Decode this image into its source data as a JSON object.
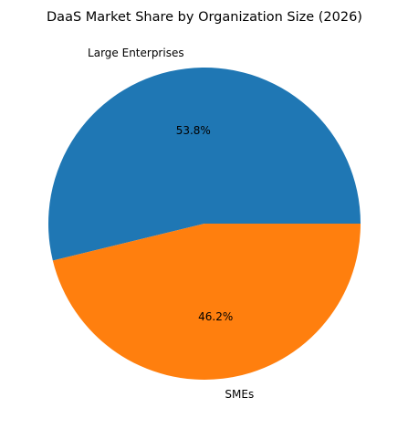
{
  "chart_data": {
    "type": "pie",
    "title": "DaaS Market Share by Organization Size (2026)",
    "slices": [
      {
        "label": "Large Enterprises",
        "value": 53.8,
        "pct_label": "53.8%",
        "color": "#1f77b4"
      },
      {
        "label": "SMEs",
        "value": 46.2,
        "pct_label": "46.2%",
        "color": "#ff7f0e"
      }
    ],
    "start_angle_deg": 0,
    "direction": "counterclockwise",
    "legend": "none"
  }
}
